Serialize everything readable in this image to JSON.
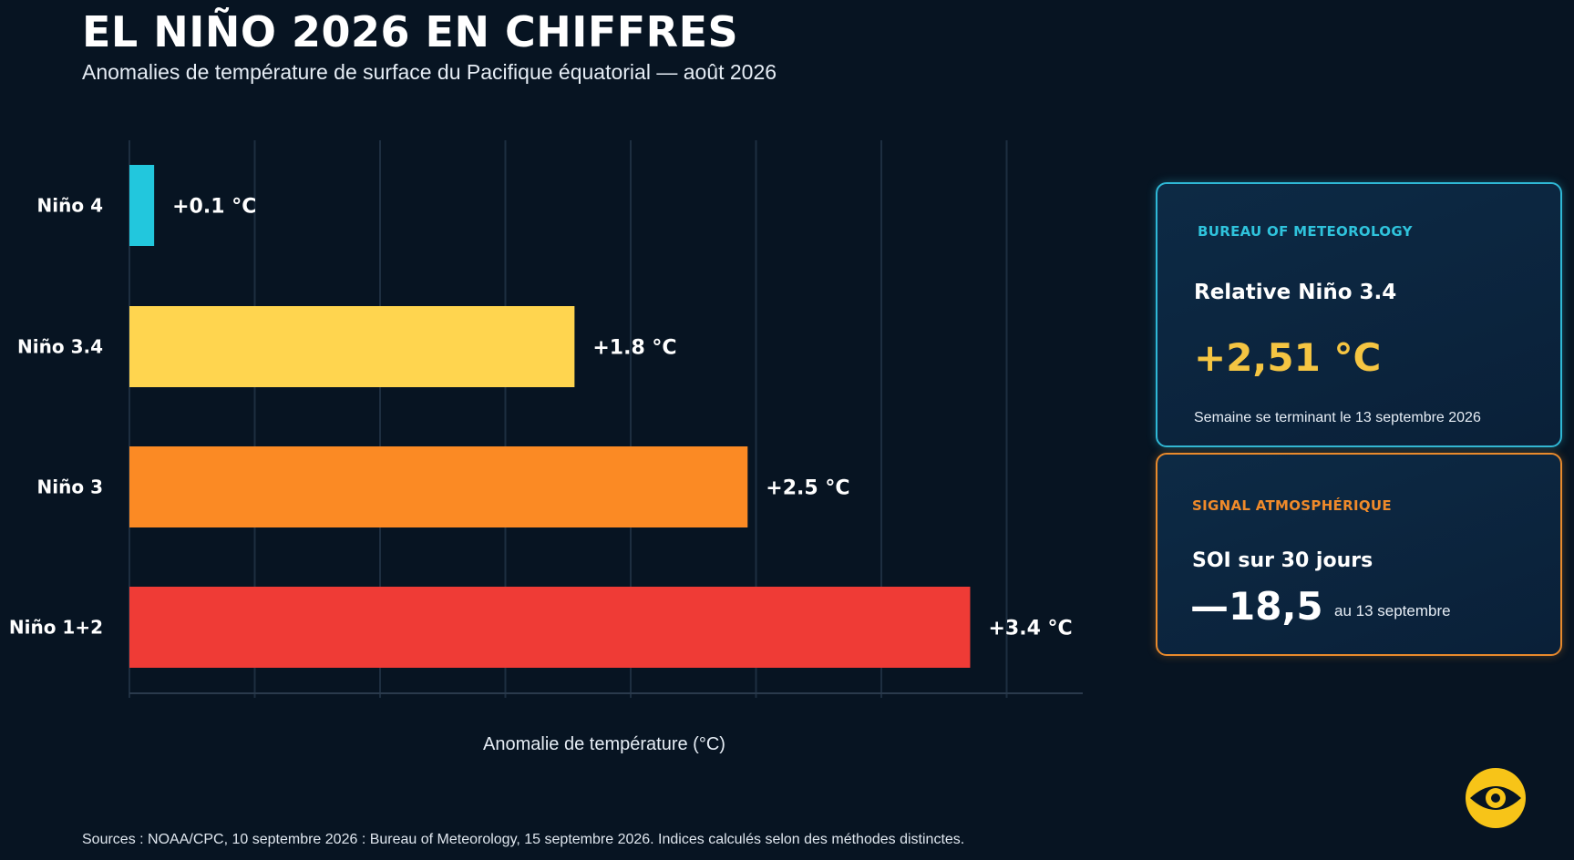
{
  "header": {
    "title": "EL NIÑO 2026 EN CHIFFRES",
    "subtitle": "Anomalies de température de surface du Pacifique équatorial — août 2026"
  },
  "chart_data": {
    "type": "bar",
    "orientation": "horizontal",
    "categories": [
      "Niño 4",
      "Niño 3.4",
      "Niño 3",
      "Niño 1+2"
    ],
    "values": [
      0.1,
      1.8,
      2.5,
      3.4
    ],
    "value_labels": [
      "+0.1 °C",
      "+1.8 °C",
      "+2.5 °C",
      "+3.4 °C"
    ],
    "colors": [
      "#22c7dd",
      "#ffd54f",
      "#fb8a24",
      "#ef3b36"
    ],
    "title": "",
    "xlabel": "Anomalie de température (°C)",
    "ylabel": "",
    "xlim": [
      0,
      3.8
    ],
    "grid": true,
    "legend": "none"
  },
  "cards": {
    "bom": {
      "kicker": "BUREAU OF METEOROLOGY",
      "heading": "Relative Niño 3.4",
      "value": "+2,51 °C",
      "note": "Semaine se terminant le 13 septembre 2026",
      "accent": "#2fc3dc",
      "value_color": "#f5c542"
    },
    "soi": {
      "kicker": "SIGNAL ATMOSPHÉRIQUE",
      "heading": "SOI sur 30 jours",
      "value": "—18,5",
      "note": "au 13 septembre",
      "accent": "#f08a2a",
      "value_color": "#ffffff"
    }
  },
  "footer": {
    "sources": "Sources : NOAA/CPC, 10 septembre 2026 : Bureau of Meteorology, 15 septembre 2026. Indices calculés selon des méthodes distinctes."
  },
  "logo": {
    "icon": "eye-logo-icon",
    "color": "#f7c418"
  }
}
